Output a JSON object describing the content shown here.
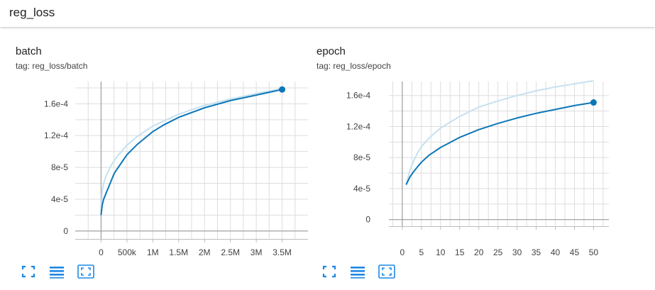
{
  "header": {
    "title": "reg_loss"
  },
  "colors": {
    "line": "#0b77b8",
    "line_raw": "#c5e1ef",
    "grid": "#dddddd",
    "axis": "#9e9e9e",
    "icon": "#1e88e5"
  },
  "buttons": {
    "icons": [
      "fullscreen-icon",
      "list-icon",
      "fit-domain-icon"
    ]
  },
  "cards": [
    {
      "title": "batch",
      "tag": "tag: reg_loss/batch"
    },
    {
      "title": "epoch",
      "tag": "tag: reg_loss/epoch"
    }
  ],
  "chart_data": [
    {
      "type": "line",
      "title": "batch",
      "xlabel": "",
      "ylabel": "",
      "xlim": [
        -500000,
        4000000
      ],
      "ylim": [
        -1e-05,
        0.000188
      ],
      "x_ticks": [
        0,
        500000,
        1000000,
        1500000,
        2000000,
        2500000,
        3000000,
        3500000
      ],
      "x_tick_labels": [
        "0",
        "500k",
        "1M",
        "1.5M",
        "2M",
        "2.5M",
        "3M",
        "3.5M"
      ],
      "y_ticks": [
        0,
        4e-05,
        8e-05,
        0.00012,
        0.00016
      ],
      "y_tick_labels": [
        "0",
        "4e-5",
        "8e-5",
        "1.2e-4",
        "1.6e-4"
      ],
      "grid": true,
      "series": [
        {
          "role": "smoothed",
          "x": [
            0,
            20000,
            50000,
            100000,
            150000,
            250000,
            300000,
            500000,
            700000,
            1000000,
            1200000,
            1500000,
            2000000,
            2500000,
            3000000,
            3500000
          ],
          "y": [
            2e-05,
            3.2e-05,
            4e-05,
            4.8e-05,
            5.6e-05,
            7.2e-05,
            7.7e-05,
            9.6e-05,
            0.000109,
            0.000125,
            0.000133,
            0.000143,
            0.000155,
            0.000164,
            0.000171,
            0.000178
          ]
        },
        {
          "role": "raw",
          "x": [
            0,
            20000,
            50000,
            100000,
            200000,
            300000,
            500000,
            700000,
            1000000,
            1500000,
            2000000,
            2500000,
            3000000,
            3500000
          ],
          "y": [
            2e-05,
            5e-05,
            6e-05,
            7e-05,
            8.3e-05,
            9.3e-05,
            0.000108,
            0.000119,
            0.000132,
            0.000147,
            0.000158,
            0.000166,
            0.000173,
            0.000179
          ]
        }
      ]
    },
    {
      "type": "line",
      "title": "epoch",
      "xlabel": "",
      "ylabel": "",
      "xlim": [
        -3.5,
        54
      ],
      "ylim": [
        -8.5e-06,
        0.000178
      ],
      "x_ticks": [
        0,
        5,
        10,
        15,
        20,
        25,
        30,
        35,
        40,
        45,
        50
      ],
      "x_tick_labels": [
        "0",
        "5",
        "10",
        "15",
        "20",
        "25",
        "30",
        "35",
        "40",
        "45",
        "50"
      ],
      "y_ticks": [
        0,
        4e-05,
        8e-05,
        0.00012,
        0.00016
      ],
      "y_tick_labels": [
        "0",
        "4e-5",
        "8e-5",
        "1.2e-4",
        "1.6e-4"
      ],
      "grid": true,
      "series": [
        {
          "role": "smoothed",
          "x": [
            1,
            2,
            3,
            4,
            5,
            7,
            10,
            15,
            20,
            25,
            30,
            35,
            40,
            45,
            50
          ],
          "y": [
            4.5e-05,
            5.5e-05,
            6.2e-05,
            6.8e-05,
            7.4e-05,
            8.3e-05,
            9.3e-05,
            0.000106,
            0.000116,
            0.000124,
            0.000131,
            0.000137,
            0.000142,
            0.000147,
            0.000151
          ]
        },
        {
          "role": "raw",
          "x": [
            1,
            2,
            3,
            4,
            5,
            7,
            10,
            15,
            20,
            25,
            30,
            35,
            40,
            45,
            50
          ],
          "y": [
            4.5e-05,
            6.4e-05,
            7.6e-05,
            8.6e-05,
            9.4e-05,
            0.000105,
            0.000118,
            0.000133,
            0.000145,
            0.000153,
            0.00016,
            0.000166,
            0.000171,
            0.000175,
            0.000179
          ]
        }
      ]
    }
  ]
}
